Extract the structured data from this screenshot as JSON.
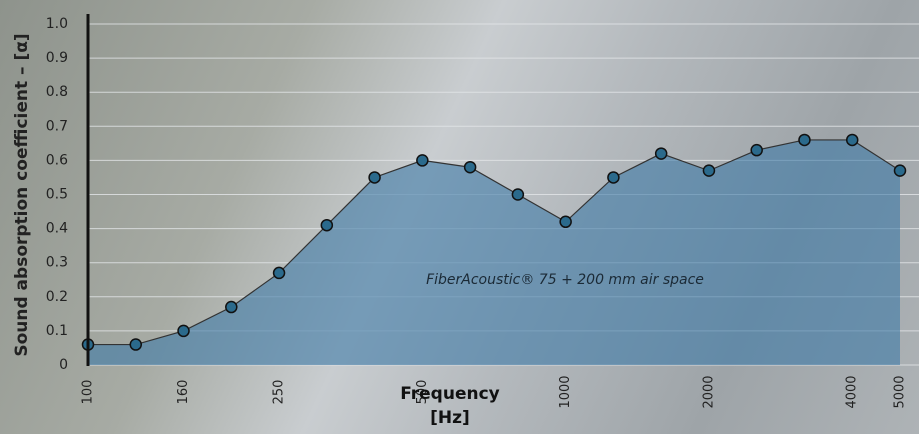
{
  "chart_data": {
    "type": "area-line",
    "ylabel": "Sound absorption coefficient – [α]",
    "xlabel": "Frequency [Hz]",
    "annotation": "FiberAcoustic® 75 + 200 mm air space",
    "categories": [
      "100",
      null,
      "160",
      null,
      "250",
      null,
      null,
      "500",
      null,
      null,
      "1000",
      null,
      null,
      "2000",
      null,
      null,
      "4000",
      "5000"
    ],
    "values": [
      0.06,
      0.06,
      0.1,
      0.17,
      0.27,
      0.41,
      0.55,
      0.6,
      0.58,
      0.5,
      0.42,
      0.55,
      0.62,
      0.57,
      0.63,
      0.66,
      0.66,
      0.57
    ],
    "color": "#3d7aa6",
    "ylim": [
      0,
      1
    ],
    "yticks": [
      0,
      0.1,
      0.2,
      0.3,
      0.4,
      0.5,
      0.6,
      0.7,
      0.8,
      0.9,
      {
        "value": 1,
        "label": "1.0"
      }
    ],
    "grid": true
  }
}
